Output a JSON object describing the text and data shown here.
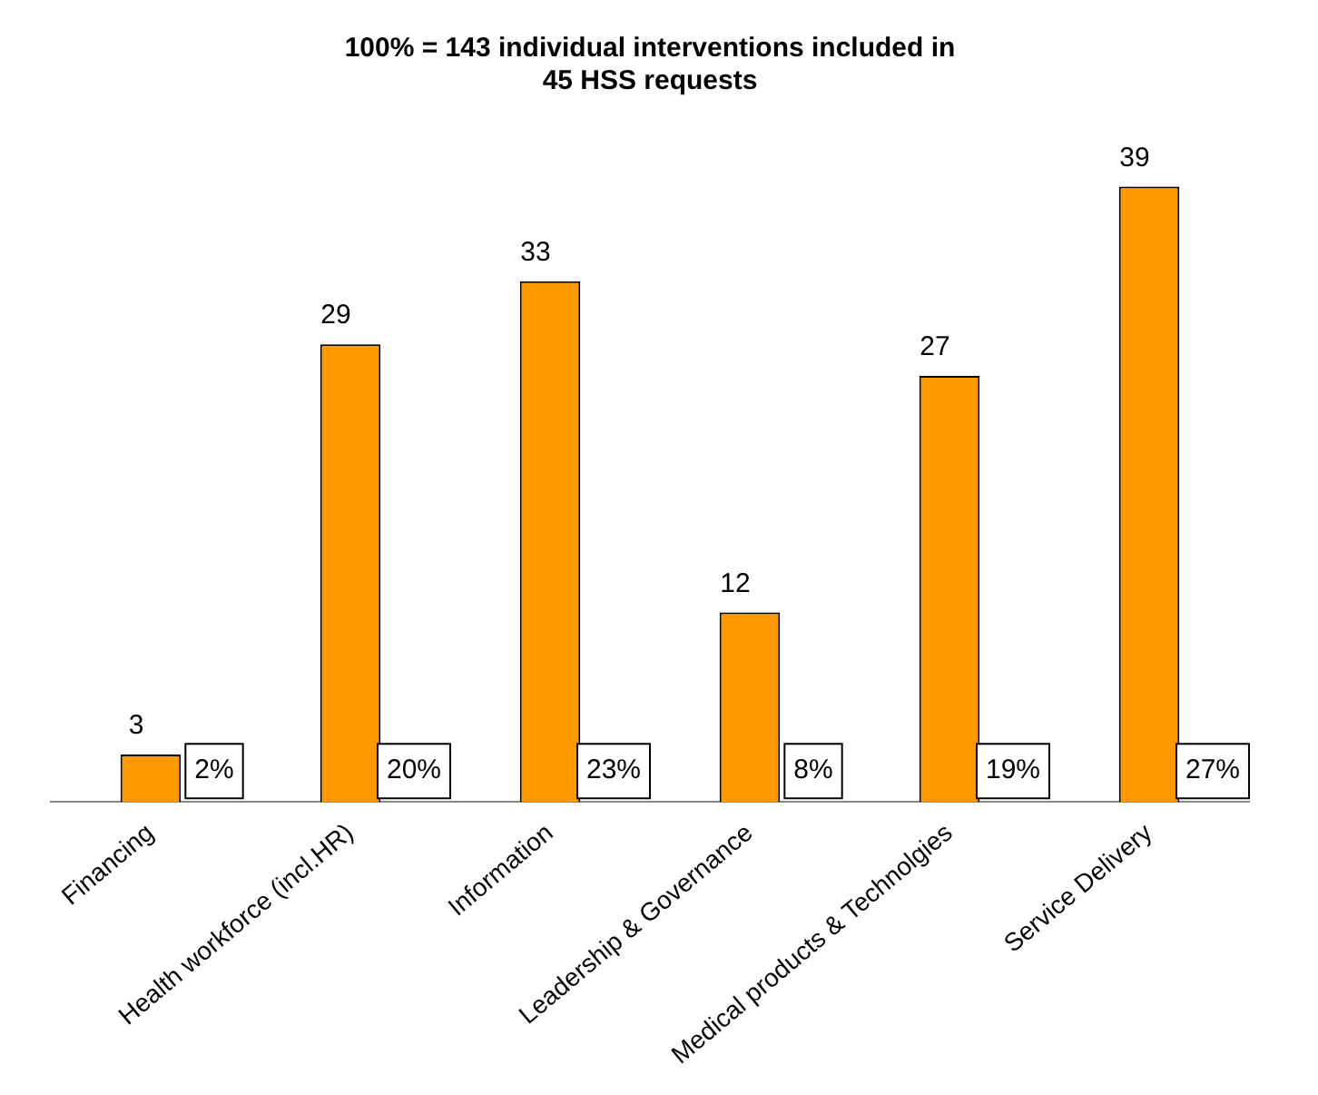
{
  "chart_data": {
    "type": "bar",
    "title": "100% = 143 individual interventions included in\n45 HSS requests",
    "categories": [
      "Financing",
      "Health workforce (incl.HR)",
      "Information",
      "Leadership & Governance",
      "Medical products & Technolgies",
      "Service Delivery"
    ],
    "series": [
      {
        "color": "#ff9900",
        "values": [
          3,
          29,
          33,
          12,
          27,
          39
        ]
      }
    ],
    "data_labels": true,
    "grid": false,
    "legend": false,
    "annotations": [
      "2%",
      "20%",
      "23%",
      "8%",
      "19%",
      "27%"
    ]
  }
}
